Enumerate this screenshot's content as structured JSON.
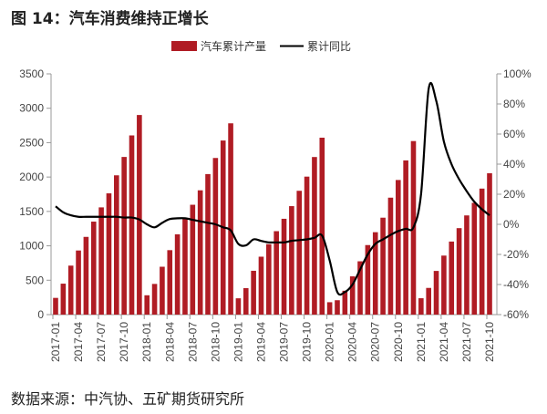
{
  "title": "图 14：汽车消费维持正增长",
  "source": "数据来源：中汽协、五矿期货研究所",
  "chart_data": {
    "type": "bar+line",
    "categories": [
      "2017-01",
      "2017-02",
      "2017-03",
      "2017-04",
      "2017-05",
      "2017-06",
      "2017-07",
      "2017-08",
      "2017-09",
      "2017-10",
      "2017-11",
      "2017-12",
      "2018-01",
      "2018-02",
      "2018-03",
      "2018-04",
      "2018-05",
      "2018-06",
      "2018-07",
      "2018-08",
      "2018-09",
      "2018-10",
      "2018-11",
      "2018-12",
      "2019-01",
      "2019-02",
      "2019-03",
      "2019-04",
      "2019-05",
      "2019-06",
      "2019-07",
      "2019-08",
      "2019-09",
      "2019-10",
      "2019-11",
      "2019-12",
      "2020-01",
      "2020-02",
      "2020-03",
      "2020-04",
      "2020-05",
      "2020-06",
      "2020-07",
      "2020-08",
      "2020-09",
      "2020-10",
      "2020-11",
      "2020-12",
      "2021-01",
      "2021-02",
      "2021-03",
      "2021-04",
      "2021-05",
      "2021-06",
      "2021-07",
      "2021-08",
      "2021-09",
      "2021-10"
    ],
    "x_tick_labels": [
      "2017-01",
      "2017-04",
      "2017-07",
      "2017-10",
      "2018-01",
      "2018-04",
      "2018-07",
      "2018-10",
      "2019-01",
      "2019-04",
      "2019-07",
      "2019-10",
      "2020-01",
      "2020-04",
      "2020-07",
      "2020-10",
      "2021-01",
      "2021-04",
      "2021-07",
      "2021-10"
    ],
    "series": [
      {
        "name": "汽车累计产量",
        "type": "bar",
        "axis": "left",
        "color": "#b01c24",
        "values": [
          243,
          450,
          712,
          932,
          1130,
          1352,
          1559,
          1763,
          2025,
          2292,
          2605,
          2902,
          281,
          446,
          696,
          937,
          1167,
          1406,
          1597,
          1807,
          2043,
          2277,
          2531,
          2781,
          237,
          385,
          637,
          842,
          1024,
          1213,
          1393,
          1577,
          1800,
          2006,
          2291,
          2572,
          180,
          209,
          347,
          556,
          775,
          1011,
          1198,
          1409,
          1700,
          1957,
          2242,
          2523,
          238,
          388,
          635,
          858,
          1062,
          1257,
          1442,
          1625,
          1832,
          2055
        ]
      },
      {
        "name": "累计同比",
        "type": "line",
        "axis": "right",
        "color": "#000000",
        "values": [
          12,
          8,
          6,
          5,
          5,
          5,
          5,
          5,
          5,
          4.5,
          4.5,
          3.2,
          0,
          -2,
          1,
          3.5,
          4,
          4,
          3,
          2,
          1,
          0,
          -2,
          -4,
          -13,
          -14,
          -10,
          -11,
          -12,
          -12,
          -12,
          -11,
          -10.5,
          -10,
          -9,
          -7.5,
          -24,
          -45,
          -45,
          -40,
          -30,
          -20,
          -13,
          -10,
          -7,
          -4.5,
          -3,
          -2,
          20,
          90,
          82,
          55,
          40,
          30,
          22,
          15,
          10,
          6
        ]
      }
    ],
    "y_left": {
      "min": 0,
      "max": 3500,
      "ticks": [
        "0",
        "500",
        "1000",
        "1500",
        "2000",
        "2500",
        "3000",
        "3500"
      ]
    },
    "y_right": {
      "min": -60,
      "max": 100,
      "ticks": [
        "-60%",
        "-40%",
        "-20%",
        "0%",
        "20%",
        "40%",
        "60%",
        "80%",
        "100%"
      ]
    },
    "legend_position": "top-center",
    "grid": false
  }
}
